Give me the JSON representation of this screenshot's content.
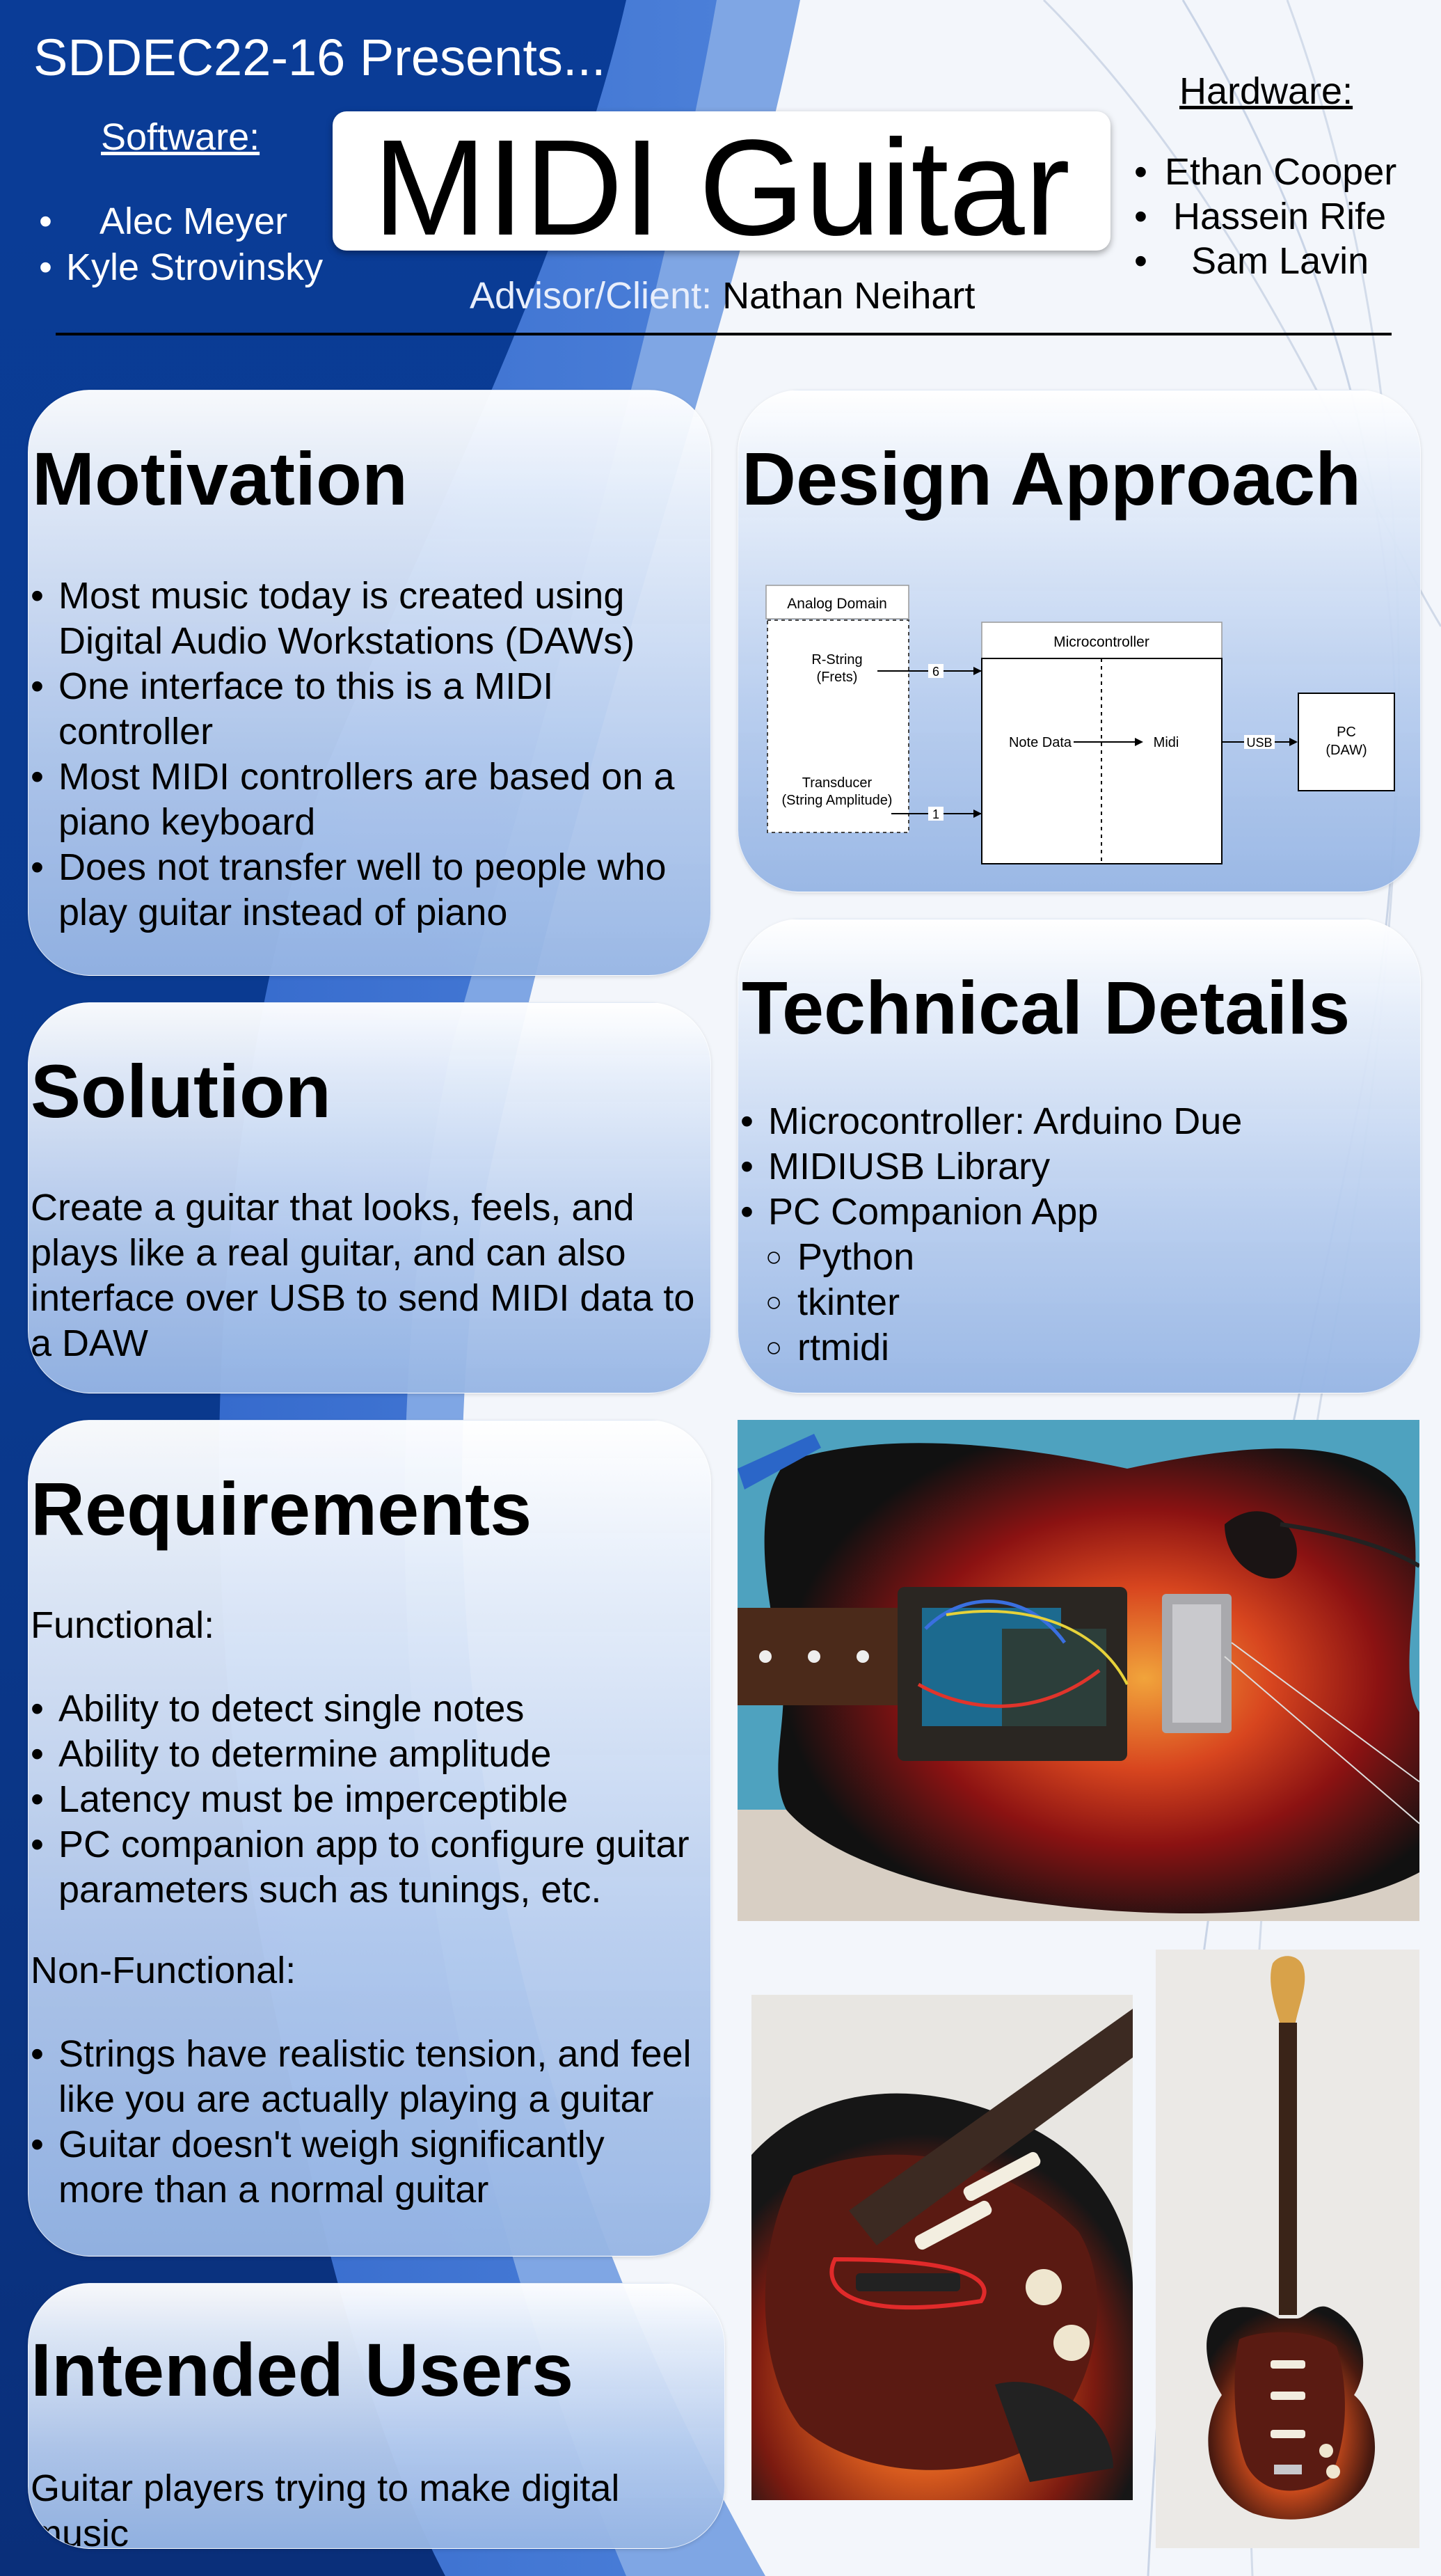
{
  "header": {
    "presents": "SDDEC22-16 Presents...",
    "title": "MIDI Guitar",
    "software_heading": "Software:",
    "software_members": [
      "Alec Meyer",
      "Kyle Strovinsky"
    ],
    "hardware_heading": "Hardware:",
    "hardware_members": [
      "Ethan Cooper",
      "Hassein Rife",
      "Sam Lavin"
    ],
    "advisor_label": "Advisor/Client:",
    "advisor_name": "Nathan Neihart"
  },
  "motivation": {
    "title": "Motivation",
    "items": [
      "Most music today is created using Digital Audio Workstations (DAWs)",
      "One interface to this is a MIDI controller",
      "Most MIDI controllers are based on a piano keyboard",
      "Does not transfer well to people who play guitar instead of piano"
    ]
  },
  "design": {
    "title": "Design Approach",
    "diagram": {
      "analog_domain": "Analog Domain",
      "r_string": [
        "R-String",
        "(Frets)"
      ],
      "transducer": [
        "Transducer",
        "(String Amplitude)"
      ],
      "count_frets": "6",
      "count_transducer": "1",
      "microcontroller": "Microcontroller",
      "note_data": "Note Data",
      "midi": "Midi",
      "usb": "USB",
      "pc": [
        "PC",
        "(DAW)"
      ]
    }
  },
  "solution": {
    "title": "Solution",
    "text": "Create a guitar that looks, feels, and plays like a real guitar, and can also interface over USB to send MIDI data to a DAW"
  },
  "technical": {
    "title": "Technical Details",
    "items": [
      "Microcontroller: Arduino Due",
      "MIDIUSB Library",
      "PC Companion App"
    ],
    "subitems": [
      "Python",
      "tkinter",
      "rtmidi"
    ]
  },
  "requirements": {
    "title": "Requirements",
    "functional_label": "Functional:",
    "functional": [
      "Ability to detect single notes",
      "Ability to determine amplitude",
      "Latency must be imperceptible",
      "PC companion app to configure guitar parameters such as tunings, etc."
    ],
    "nonfunctional_label": "Non-Functional:",
    "nonfunctional": [
      "Strings have realistic tension, and feel like you are actually playing a guitar",
      "Guitar doesn't weigh significantly more than a normal guitar"
    ]
  },
  "users": {
    "title": "Intended Users",
    "text": "Guitar players trying to make digital music"
  },
  "colors": {
    "dark_blue": "#0b3a8c",
    "mid_blue": "#2f63c6",
    "light_blue": "#6f9be0",
    "card_blue": "#9bb8e6"
  }
}
